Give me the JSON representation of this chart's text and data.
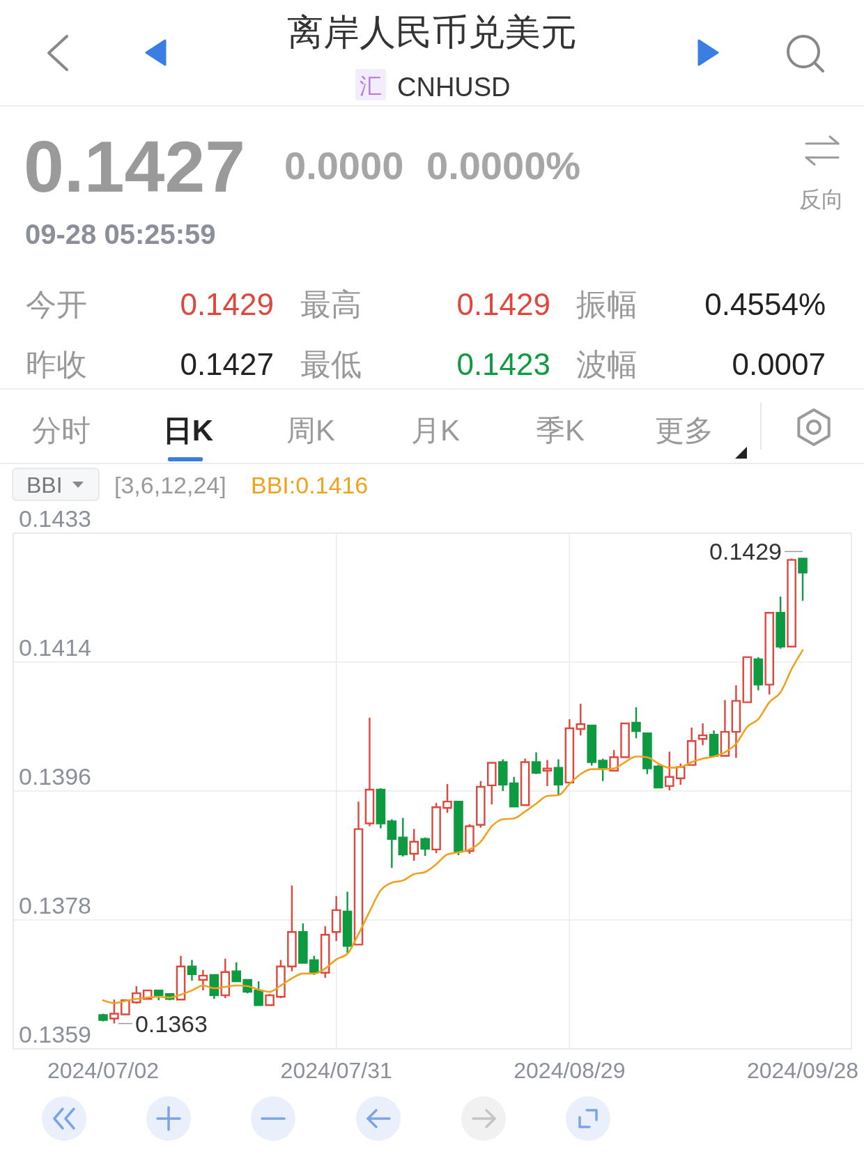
{
  "chart_data": {
    "type": "candlestick",
    "title": "离岸人民币兑美元",
    "subtitle": "CNHUSD",
    "categories": [
      "2024/07/02",
      null,
      null,
      null,
      null,
      null,
      null,
      null,
      null,
      null,
      null,
      null,
      null,
      null,
      null,
      null,
      null,
      null,
      null,
      null,
      null,
      "2024/07/31",
      null,
      null,
      null,
      null,
      null,
      null,
      null,
      null,
      null,
      null,
      null,
      null,
      null,
      null,
      null,
      null,
      null,
      null,
      null,
      null,
      "2024/08/29",
      null,
      null,
      null,
      null,
      null,
      null,
      null,
      null,
      null,
      null,
      null,
      null,
      null,
      null,
      null,
      null,
      null,
      null,
      null,
      null,
      "2024/09/28"
    ],
    "ohlc": [
      [
        0.13642,
        0.13644,
        0.13633,
        0.13635
      ],
      [
        0.13637,
        0.13664,
        0.1363,
        0.13644
      ],
      [
        0.13643,
        0.13664,
        0.13643,
        0.13663
      ],
      [
        0.1366,
        0.13683,
        0.13658,
        0.13673
      ],
      [
        0.13665,
        0.13677,
        0.13665,
        0.13677
      ],
      [
        0.13677,
        0.13678,
        0.13663,
        0.1367
      ],
      [
        0.13672,
        0.13673,
        0.13663,
        0.13665
      ],
      [
        0.13664,
        0.13726,
        0.13664,
        0.13711
      ],
      [
        0.13711,
        0.1372,
        0.13691,
        0.137
      ],
      [
        0.13692,
        0.13706,
        0.13677,
        0.13698
      ],
      [
        0.13699,
        0.13699,
        0.13665,
        0.1367
      ],
      [
        0.1367,
        0.13722,
        0.13666,
        0.13703
      ],
      [
        0.13704,
        0.13717,
        0.1369,
        0.1369
      ],
      [
        0.13692,
        0.13692,
        0.13673,
        0.13675
      ],
      [
        0.13677,
        0.1369,
        0.13655,
        0.13656
      ],
      [
        0.13656,
        0.13672,
        0.13655,
        0.1367
      ],
      [
        0.13668,
        0.1372,
        0.13666,
        0.13711
      ],
      [
        0.13711,
        0.13826,
        0.13704,
        0.1376
      ],
      [
        0.1376,
        0.13772,
        0.13715,
        0.13716
      ],
      [
        0.1372,
        0.13726,
        0.13699,
        0.13702
      ],
      [
        0.13702,
        0.13768,
        0.13695,
        0.13756
      ],
      [
        0.1376,
        0.13811,
        0.13747,
        0.13791
      ],
      [
        0.13789,
        0.13817,
        0.1373,
        0.1374
      ],
      [
        0.13742,
        0.13945,
        0.13742,
        0.13906
      ],
      [
        0.13914,
        0.14064,
        0.1391,
        0.13962
      ],
      [
        0.13962,
        0.13964,
        0.13907,
        0.13914
      ],
      [
        0.13917,
        0.1392,
        0.13851,
        0.13892
      ],
      [
        0.13894,
        0.13922,
        0.13867,
        0.1387
      ],
      [
        0.13871,
        0.13906,
        0.13861,
        0.13888
      ],
      [
        0.13892,
        0.13894,
        0.13868,
        0.13878
      ],
      [
        0.13877,
        0.13943,
        0.13872,
        0.13937
      ],
      [
        0.13936,
        0.1397,
        0.13929,
        0.13945
      ],
      [
        0.13945,
        0.13945,
        0.13869,
        0.13874
      ],
      [
        0.13875,
        0.13913,
        0.13871,
        0.1391
      ],
      [
        0.13912,
        0.13974,
        0.13908,
        0.13966
      ],
      [
        0.13968,
        0.14,
        0.13941,
        0.14
      ],
      [
        0.14001,
        0.14005,
        0.1396,
        0.13969
      ],
      [
        0.13971,
        0.1398,
        0.13938,
        0.13938
      ],
      [
        0.1394,
        0.14006,
        0.1394,
        0.14001
      ],
      [
        0.14001,
        0.14015,
        0.13984,
        0.13986
      ],
      [
        0.13989,
        0.14004,
        0.13967,
        0.13992
      ],
      [
        0.13993,
        0.14005,
        0.13955,
        0.13969
      ],
      [
        0.13972,
        0.14062,
        0.1397,
        0.14049
      ],
      [
        0.14048,
        0.14084,
        0.14039,
        0.14055
      ],
      [
        0.14053,
        0.14053,
        0.13996,
        0.14001
      ],
      [
        0.14003,
        0.14006,
        0.13974,
        0.13992
      ],
      [
        0.13989,
        0.14018,
        0.13989,
        0.14008
      ],
      [
        0.14008,
        0.14057,
        0.14008,
        0.14056
      ],
      [
        0.14057,
        0.14079,
        0.14035,
        0.14045
      ],
      [
        0.14042,
        0.14042,
        0.13984,
        0.13992
      ],
      [
        0.13995,
        0.13997,
        0.13964,
        0.13965
      ],
      [
        0.13967,
        0.14016,
        0.13961,
        0.1398
      ],
      [
        0.13978,
        0.13999,
        0.13969,
        0.13994
      ],
      [
        0.13997,
        0.1405,
        0.13997,
        0.14031
      ],
      [
        0.14034,
        0.14056,
        0.14025,
        0.14039
      ],
      [
        0.1404,
        0.14046,
        0.14009,
        0.1401
      ],
      [
        0.1401,
        0.14089,
        0.1401,
        0.14044
      ],
      [
        0.14044,
        0.1411,
        0.14007,
        0.14088
      ],
      [
        0.14086,
        0.1415,
        0.14086,
        0.1415
      ],
      [
        0.14147,
        0.1415,
        0.14103,
        0.14111
      ],
      [
        0.14111,
        0.14213,
        0.14097,
        0.14213
      ],
      [
        0.14213,
        0.14236,
        0.14162,
        0.14165
      ],
      [
        0.14165,
        0.1429,
        0.14164,
        0.14288
      ],
      [
        0.1429,
        0.1429,
        0.1423,
        0.1427
      ]
    ],
    "colors": [
      "#0e9a40",
      "#e0463b",
      "#e0463b",
      "#e0463b",
      "#e0463b",
      "#0e9a40",
      "#0e9a40",
      "#e0463b",
      "#0e9a40",
      "#e0463b",
      "#0e9a40",
      "#e0463b",
      "#0e9a40",
      "#0e9a40",
      "#0e9a40",
      "#e0463b",
      "#e0463b",
      "#e0463b",
      "#0e9a40",
      "#0e9a40",
      "#e0463b",
      "#e0463b",
      "#0e9a40",
      "#e0463b",
      "#e0463b",
      "#0e9a40",
      "#0e9a40",
      "#0e9a40",
      "#e0463b",
      "#0e9a40",
      "#e0463b",
      "#e0463b",
      "#0e9a40",
      "#e0463b",
      "#e0463b",
      "#e0463b",
      "#0e9a40",
      "#0e9a40",
      "#e0463b",
      "#0e9a40",
      "#e0463b",
      "#0e9a40",
      "#e0463b",
      "#e0463b",
      "#0e9a40",
      "#0e9a40",
      "#e0463b",
      "#e0463b",
      "#0e9a40",
      "#0e9a40",
      "#0e9a40",
      "#e0463b",
      "#e0463b",
      "#e0463b",
      "#e0463b",
      "#0e9a40",
      "#e0463b",
      "#e0463b",
      "#e0463b",
      "#0e9a40",
      "#e0463b",
      "#0e9a40",
      "#e0463b",
      "#0e9a40"
    ],
    "series": [
      {
        "type": "line",
        "name": "BBI",
        "color": "#f0a21e",
        "values": [
          0.13663,
          0.13659,
          0.13662,
          0.13665,
          0.13667,
          0.13668,
          0.13667,
          0.13671,
          0.13677,
          0.13684,
          0.1368,
          0.13682,
          0.13684,
          0.13683,
          0.13678,
          0.13675,
          0.13684,
          0.13694,
          0.13701,
          0.13701,
          0.13708,
          0.13721,
          0.13729,
          0.13757,
          0.13789,
          0.13819,
          0.1383,
          0.13833,
          0.13842,
          0.13845,
          0.13856,
          0.1387,
          0.13873,
          0.13877,
          0.13888,
          0.1391,
          0.1392,
          0.13921,
          0.13931,
          0.13942,
          0.13953,
          0.13954,
          0.1397,
          0.13984,
          0.13991,
          0.13991,
          0.13992,
          0.14001,
          0.14009,
          0.14008,
          0.13999,
          0.13993,
          0.13994,
          0.14001,
          0.14006,
          0.14009,
          0.14015,
          0.14027,
          0.14051,
          0.14062,
          0.14086,
          0.141,
          0.14133,
          0.1416
        ]
      }
    ],
    "ylim": [
      0.13594,
      0.14326
    ],
    "yticks": [
      {
        "value": 0.13594,
        "label": "0.1359"
      },
      {
        "value": 0.13777,
        "label": "0.1378"
      },
      0.1396,
      {
        "value": 0.14143,
        "label": "0.1414"
      },
      {
        "value": 0.14326,
        "label": "0.1433"
      }
    ],
    "grid": true,
    "legend": "top left",
    "annotations": [
      "汇",
      "0.1427",
      "0.0000",
      "0.0000%",
      "09-28 05:25:59",
      "反向",
      "今开",
      "0.1429",
      "最高",
      "0.1429",
      "振幅",
      "0.4554%",
      "昨收",
      "0.1427",
      "最低",
      "0.1423",
      "波幅",
      "0.0007",
      "分时",
      "日K",
      "周K",
      "月K",
      "季K",
      "更多",
      "[3,6,12,24]",
      ":0.1416",
      "0.1363",
      {
        "text": "0.1429",
        "x": "2024/09/28",
        "y": 0.1429
      }
    ]
  }
}
